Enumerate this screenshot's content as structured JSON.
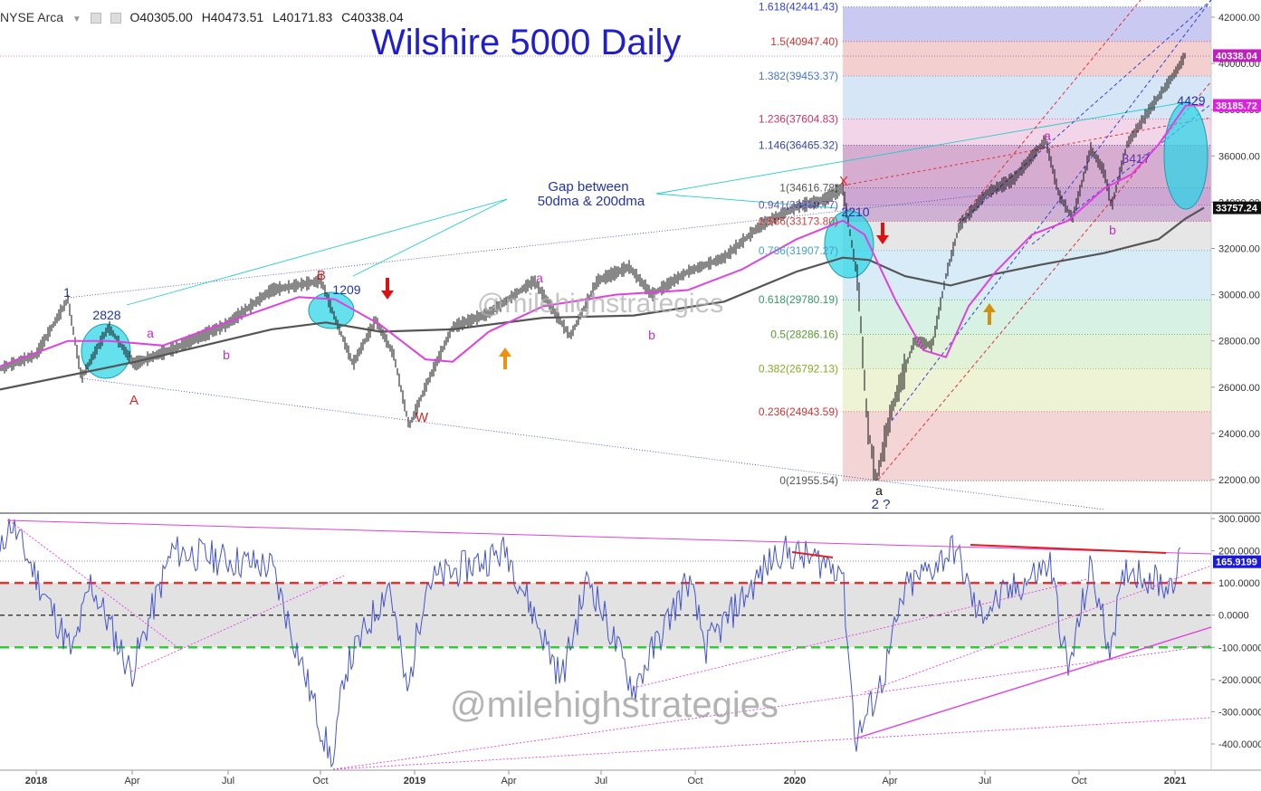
{
  "header": {
    "exchange": "NYSE Arca",
    "open": "O40305.00",
    "high": "H40473.51",
    "low": "L40171.83",
    "close": "C40338.04"
  },
  "title": "Wilshire 5000 Daily",
  "watermark": "@milehighstrategies",
  "colors": {
    "price": "#111111",
    "ma50": "#e040e0",
    "ma200": "#555555",
    "annotation_blue": "#2233aa",
    "annotation_red": "#d42a2a",
    "annotation_magenta": "#c030c0",
    "cyan": "#22cccc",
    "osc": "#4455cc"
  },
  "chart_data": [
    {
      "type": "line",
      "name": "price",
      "yticks": [
        "42000.00",
        "40000.00",
        "38000.00",
        "36000.00",
        "34000.00",
        "32000.00",
        "30000.00",
        "28000.00",
        "26000.00",
        "24000.00",
        "22000.00"
      ],
      "ylim": [
        21000,
        43500
      ],
      "xticks": [
        "2018",
        "Apr",
        "Jul",
        "Oct",
        "2019",
        "Apr",
        "Jul",
        "Oct",
        "2020",
        "Apr",
        "Jul",
        "Oct",
        "2021"
      ],
      "price_labels": [
        {
          "text": "40338.04",
          "value": 40338.04,
          "color": "#c020c0"
        },
        {
          "text": "38185.72",
          "value": 38185.72,
          "color": "#e020e0"
        },
        {
          "text": "33757.24",
          "value": 33757.24,
          "color": "#111111"
        }
      ],
      "fib_levels": [
        {
          "text": "1.618(42441.43)",
          "value": 42441.43,
          "color": "#3344cc",
          "band": "#c9c9f2"
        },
        {
          "text": "1.5(40947.40)",
          "value": 40947.4,
          "color": "#cc3333",
          "band": "#f3cfcf"
        },
        {
          "text": "1.382(39453.37)",
          "value": 39453.37,
          "color": "#4477cc",
          "band": "#d7e6f7"
        },
        {
          "text": "1.236(37604.83)",
          "value": 37604.83,
          "color": "#cc3366",
          "band": "#f3d5e9"
        },
        {
          "text": "1.146(36465.32)",
          "value": 36465.32,
          "color": "#3344aa",
          "band": "#f4e0ee"
        },
        {
          "text": "1(34616.78)",
          "value": 34616.78,
          "color": "#555555",
          "band": "#e7d8f2"
        },
        {
          "text": "0.941(33869.77)",
          "value": 33869.77,
          "color": "#6655bb",
          "band": "#e9e9f3"
        },
        {
          "text": "0.886(33173.80)",
          "value": 33173.8,
          "color": "#cc4444",
          "band": "#e6e6e6"
        },
        {
          "text": "0.786(31907.27)",
          "value": 31907.27,
          "color": "#44a0cc",
          "band": "#d8ecf8"
        },
        {
          "text": "0.618(29780.19)",
          "value": 29780.19,
          "color": "#339966",
          "band": "#d7f1e4"
        },
        {
          "text": "0.5(28286.16)",
          "value": 28286.16,
          "color": "#559933",
          "band": "#e2f2d8"
        },
        {
          "text": "0.382(26792.13)",
          "value": 26792.13,
          "color": "#88aa22",
          "band": "#eef3d6"
        },
        {
          "text": "0.236(24943.59)",
          "value": 24943.59,
          "color": "#cc3333",
          "band": "#f3d5d5"
        },
        {
          "text": "0(21955.54)",
          "value": 21955.54,
          "color": "#555555",
          "band": ""
        }
      ],
      "annotations": [
        {
          "text": "1",
          "color": "#2233aa"
        },
        {
          "text": "2828",
          "color": "#2233aa"
        },
        {
          "text": "a",
          "color": "#c030c0"
        },
        {
          "text": "b",
          "color": "#c030c0"
        },
        {
          "text": "A",
          "color": "#d42a2a"
        },
        {
          "text": "B",
          "color": "#d42a2a"
        },
        {
          "text": "1209",
          "color": "#2233aa"
        },
        {
          "text": "W",
          "color": "#d42a2a"
        },
        {
          "text": "a",
          "color": "#c030c0"
        },
        {
          "text": "b",
          "color": "#c030c0"
        },
        {
          "text": "Gap between",
          "color": "#2233aa"
        },
        {
          "text": "50dma & 200dma",
          "color": "#2233aa"
        },
        {
          "text": "X",
          "color": "#d42a2a"
        },
        {
          "text": "2210",
          "color": "#2233aa"
        },
        {
          "text": "a",
          "color": "#111111"
        },
        {
          "text": "2 ?",
          "color": "#2233aa"
        },
        {
          "text": "a",
          "color": "#c030c0"
        },
        {
          "text": "3417",
          "color": "#6633aa"
        },
        {
          "text": "b",
          "color": "#c030c0"
        },
        {
          "text": "4429",
          "color": "#2233aa"
        }
      ]
    },
    {
      "type": "line",
      "name": "oscillator",
      "yticks": [
        "300.0000",
        "200.0000",
        "100.0000",
        "0.0000",
        "-100.0000",
        "-200.0000",
        "-300.0000",
        "-400.0000"
      ],
      "ylim": [
        -470,
        310
      ],
      "last_label": {
        "text": "165.9199",
        "value": 165.9199
      },
      "levels": [
        100,
        0,
        -100
      ]
    }
  ]
}
